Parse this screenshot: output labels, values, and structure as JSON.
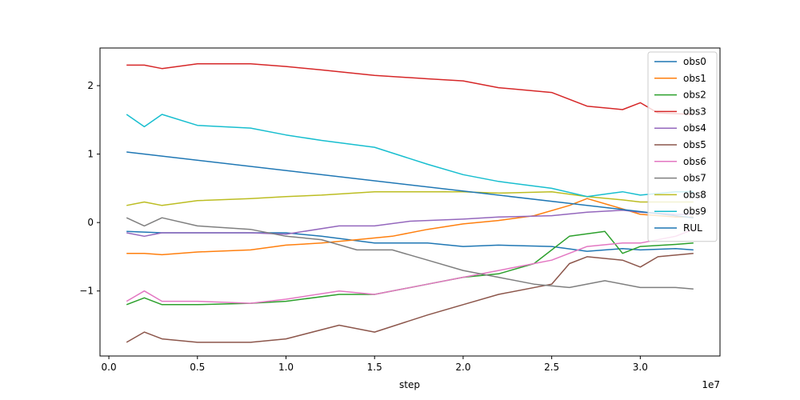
{
  "chart_data": {
    "type": "line",
    "xlabel": "step",
    "ylabel": "",
    "x_offset_label": "1e7",
    "xlim": [
      -0.05,
      3.45
    ],
    "ylim": [
      -1.95,
      2.55
    ],
    "xticks": [
      0.0,
      0.5,
      1.0,
      1.5,
      2.0,
      2.5,
      3.0
    ],
    "xtick_labels": [
      "0.0",
      "0.5",
      "1.0",
      "1.5",
      "2.0",
      "2.5",
      "3.0"
    ],
    "yticks": [
      -1,
      0,
      1,
      2
    ],
    "ytick_labels": [
      "−1",
      "0",
      "1",
      "2"
    ],
    "legend_position": "top-right",
    "series": [
      {
        "name": "obs0",
        "color": "#1f77b4",
        "x": [
          0.1,
          0.3,
          0.5,
          0.8,
          1.0,
          1.2,
          1.5,
          1.8,
          2.0,
          2.2,
          2.5,
          2.7,
          2.9,
          3.0,
          3.2,
          3.3
        ],
        "y": [
          -0.13,
          -0.15,
          -0.15,
          -0.15,
          -0.15,
          -0.2,
          -0.3,
          -0.3,
          -0.35,
          -0.33,
          -0.35,
          -0.42,
          -0.38,
          -0.4,
          -0.38,
          -0.4
        ]
      },
      {
        "name": "obs1",
        "color": "#ff7f0e",
        "x": [
          0.1,
          0.2,
          0.3,
          0.5,
          0.8,
          1.0,
          1.2,
          1.4,
          1.6,
          1.8,
          2.0,
          2.2,
          2.4,
          2.6,
          2.7,
          2.9,
          3.0,
          3.2,
          3.3
        ],
        "y": [
          -0.45,
          -0.45,
          -0.47,
          -0.43,
          -0.4,
          -0.33,
          -0.3,
          -0.25,
          -0.2,
          -0.1,
          -0.02,
          0.03,
          0.1,
          0.25,
          0.35,
          0.2,
          0.12,
          0.08,
          0.08
        ]
      },
      {
        "name": "obs2",
        "color": "#2ca02c",
        "x": [
          0.1,
          0.2,
          0.3,
          0.5,
          0.8,
          1.0,
          1.3,
          1.5,
          1.8,
          2.0,
          2.2,
          2.4,
          2.6,
          2.8,
          2.9,
          3.0,
          3.2,
          3.3
        ],
        "y": [
          -1.2,
          -1.1,
          -1.2,
          -1.2,
          -1.18,
          -1.15,
          -1.05,
          -1.05,
          -0.9,
          -0.8,
          -0.75,
          -0.6,
          -0.2,
          -0.13,
          -0.45,
          -0.35,
          -0.32,
          -0.3
        ]
      },
      {
        "name": "obs3",
        "color": "#d62728",
        "x": [
          0.1,
          0.2,
          0.3,
          0.5,
          0.8,
          1.0,
          1.2,
          1.5,
          1.8,
          2.0,
          2.2,
          2.5,
          2.7,
          2.9,
          3.0,
          3.1,
          3.3
        ],
        "y": [
          2.3,
          2.3,
          2.25,
          2.32,
          2.32,
          2.28,
          2.23,
          2.15,
          2.1,
          2.07,
          1.97,
          1.9,
          1.7,
          1.65,
          1.75,
          1.6,
          1.58
        ]
      },
      {
        "name": "obs4",
        "color": "#9467bd",
        "x": [
          0.1,
          0.2,
          0.3,
          0.5,
          0.8,
          1.0,
          1.3,
          1.5,
          1.7,
          2.0,
          2.2,
          2.5,
          2.7,
          2.9,
          3.0,
          3.2,
          3.3
        ],
        "y": [
          -0.15,
          -0.2,
          -0.15,
          -0.15,
          -0.15,
          -0.17,
          -0.05,
          -0.05,
          0.02,
          0.05,
          0.08,
          0.1,
          0.15,
          0.18,
          0.15,
          0.12,
          0.12
        ]
      },
      {
        "name": "obs5",
        "color": "#8c564b",
        "x": [
          0.1,
          0.2,
          0.3,
          0.5,
          0.8,
          1.0,
          1.3,
          1.5,
          1.8,
          2.0,
          2.2,
          2.5,
          2.6,
          2.7,
          2.9,
          3.0,
          3.1,
          3.3
        ],
        "y": [
          -1.75,
          -1.6,
          -1.7,
          -1.75,
          -1.75,
          -1.7,
          -1.5,
          -1.6,
          -1.35,
          -1.2,
          -1.05,
          -0.9,
          -0.6,
          -0.5,
          -0.55,
          -0.65,
          -0.5,
          -0.45
        ]
      },
      {
        "name": "obs6",
        "color": "#e377c2",
        "x": [
          0.1,
          0.2,
          0.3,
          0.5,
          0.8,
          1.0,
          1.3,
          1.5,
          1.8,
          2.0,
          2.2,
          2.5,
          2.7,
          2.9,
          3.0,
          3.2,
          3.3
        ],
        "y": [
          -1.15,
          -1.0,
          -1.15,
          -1.15,
          -1.18,
          -1.12,
          -1.0,
          -1.05,
          -0.9,
          -0.8,
          -0.7,
          -0.55,
          -0.35,
          -0.3,
          -0.3,
          -0.2,
          -0.1
        ]
      },
      {
        "name": "obs7",
        "color": "#7f7f7f",
        "x": [
          0.1,
          0.2,
          0.3,
          0.5,
          0.8,
          1.0,
          1.2,
          1.4,
          1.6,
          1.8,
          2.0,
          2.2,
          2.4,
          2.6,
          2.8,
          3.0,
          3.2,
          3.3
        ],
        "y": [
          0.07,
          -0.05,
          0.07,
          -0.05,
          -0.1,
          -0.2,
          -0.25,
          -0.4,
          -0.4,
          -0.55,
          -0.7,
          -0.8,
          -0.9,
          -0.95,
          -0.85,
          -0.95,
          -0.95,
          -0.97
        ]
      },
      {
        "name": "obs8",
        "color": "#bcbd22",
        "x": [
          0.1,
          0.2,
          0.3,
          0.5,
          0.8,
          1.0,
          1.2,
          1.5,
          1.8,
          2.0,
          2.2,
          2.5,
          2.7,
          2.9,
          3.0,
          3.2,
          3.3
        ],
        "y": [
          0.25,
          0.3,
          0.25,
          0.32,
          0.35,
          0.38,
          0.4,
          0.45,
          0.45,
          0.45,
          0.43,
          0.45,
          0.38,
          0.33,
          0.3,
          0.3,
          0.3
        ]
      },
      {
        "name": "obs9",
        "color": "#17becf",
        "x": [
          0.1,
          0.2,
          0.3,
          0.5,
          0.8,
          1.0,
          1.2,
          1.5,
          1.8,
          2.0,
          2.2,
          2.5,
          2.7,
          2.9,
          3.0,
          3.2,
          3.3
        ],
        "y": [
          1.58,
          1.4,
          1.58,
          1.42,
          1.38,
          1.28,
          1.2,
          1.1,
          0.85,
          0.7,
          0.6,
          0.5,
          0.38,
          0.45,
          0.4,
          0.45,
          0.45
        ]
      },
      {
        "name": "RUL",
        "color": "#1f77b4",
        "x": [
          0.1,
          3.3
        ],
        "y": [
          1.03,
          0.07
        ]
      }
    ]
  }
}
